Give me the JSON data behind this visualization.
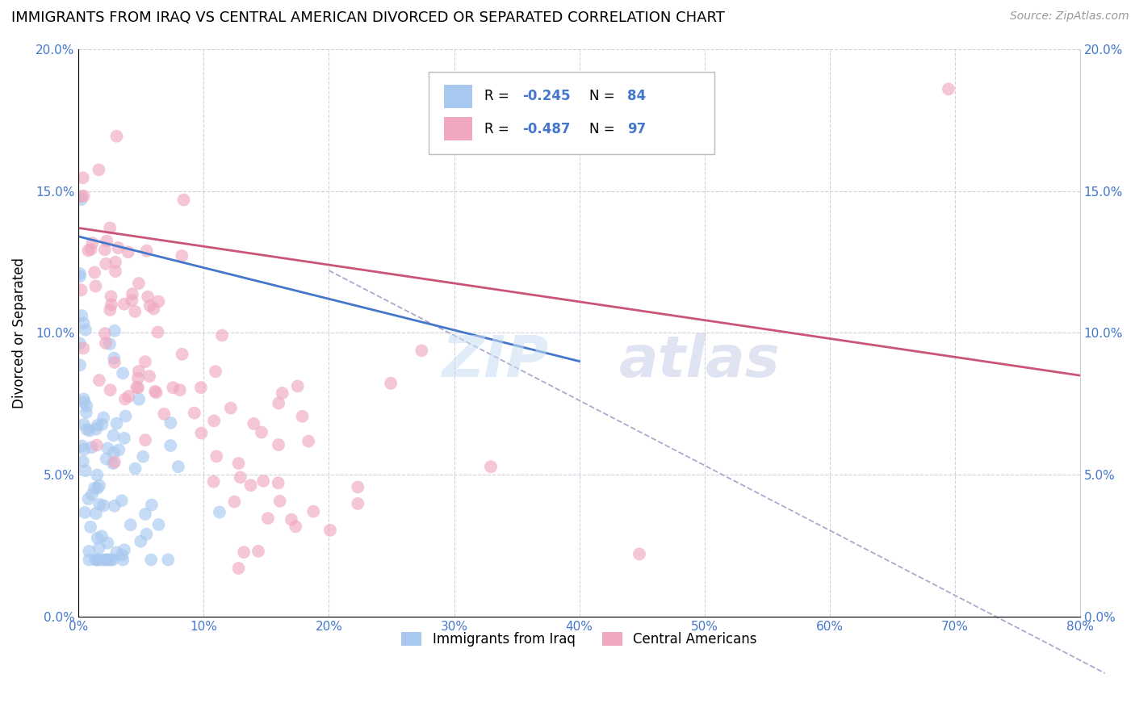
{
  "title": "IMMIGRANTS FROM IRAQ VS CENTRAL AMERICAN DIVORCED OR SEPARATED CORRELATION CHART",
  "source": "Source: ZipAtlas.com",
  "ylabel": "Divorced or Separated",
  "legend_label1": "Immigrants from Iraq",
  "legend_label2": "Central Americans",
  "legend_r1_text": "R = ",
  "legend_r1_val": "-0.245",
  "legend_n1_text": "  N = ",
  "legend_n1_val": "84",
  "legend_r2_text": "R = ",
  "legend_r2_val": "-0.487",
  "legend_n2_text": "  N = ",
  "legend_n2_val": "97",
  "xlim": [
    0.0,
    0.8
  ],
  "ylim": [
    0.0,
    0.2
  ],
  "xticks": [
    0.0,
    0.1,
    0.2,
    0.3,
    0.4,
    0.5,
    0.6,
    0.7,
    0.8
  ],
  "yticks": [
    0.0,
    0.05,
    0.1,
    0.15,
    0.2
  ],
  "color_blue": "#a8c8f0",
  "color_pink": "#f0a8c0",
  "color_trendline_blue": "#4477cc",
  "color_trendline_pink": "#cc5577",
  "color_dashed": "#aaaacc",
  "tick_color": "#4477cc",
  "background_color": "#ffffff",
  "grid_color": "#ccccdd",
  "watermark_zip": "ZIP",
  "watermark_atlas": "atlas"
}
